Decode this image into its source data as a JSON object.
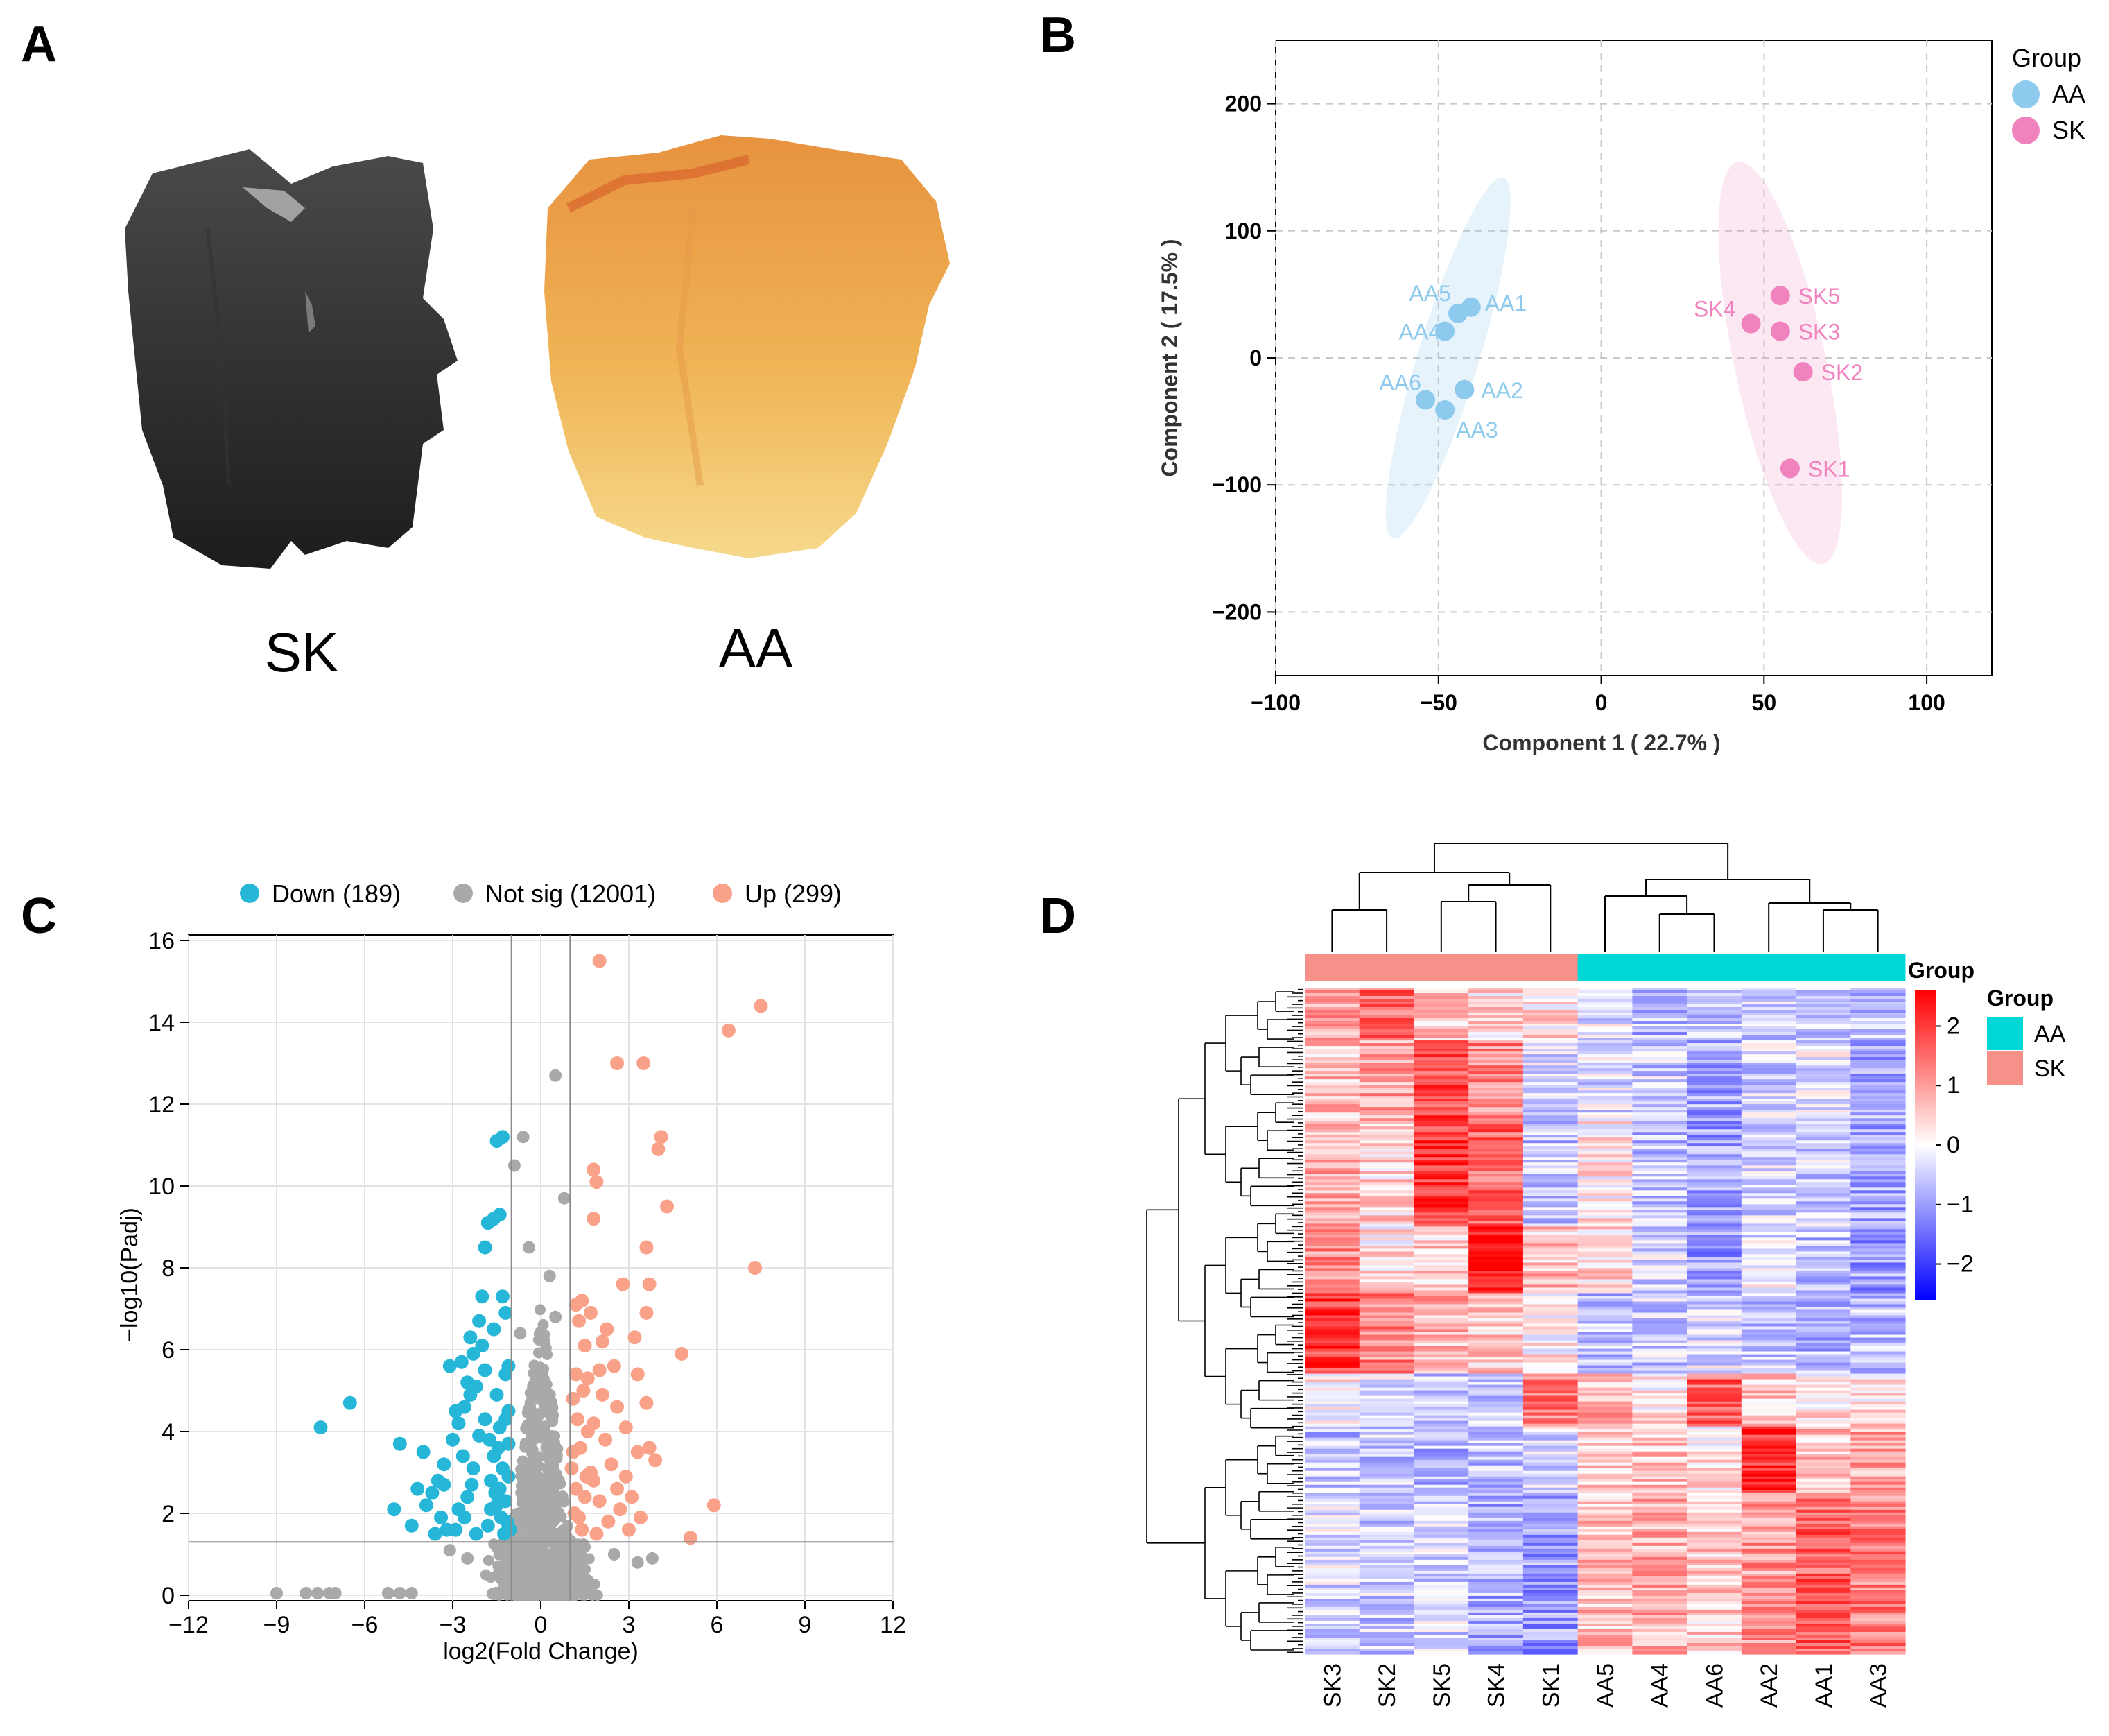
{
  "panels": {
    "a": "A",
    "b": "B",
    "c": "C",
    "d": "D"
  },
  "panel_a": {
    "sample_labels": [
      "SK",
      "AA"
    ]
  },
  "colors": {
    "aa": "#8ec9ee",
    "sk": "#f082bd",
    "down": "#26b6d8",
    "notsig": "#a9a9a9",
    "up": "#f9a189",
    "heat_high": "#ff0000",
    "heat_low": "#0000ff",
    "ann_aa": "#00d8d8",
    "ann_sk": "#f79088"
  },
  "chart_data": [
    {
      "type": "scatter",
      "panel": "B",
      "title": "",
      "xlabel": "Component 1 ( 22.7% )",
      "ylabel": "Component 2 ( 17.5% )",
      "xlim": [
        -100,
        120
      ],
      "ylim": [
        -250,
        250
      ],
      "xticks": [
        -100,
        -50,
        0,
        50,
        100
      ],
      "xtick_labels": [
        "−100",
        "−50",
        "0",
        "50",
        "100"
      ],
      "yticks": [
        -200,
        -100,
        0,
        100,
        200
      ],
      "ytick_labels": [
        "−200",
        "−100",
        "0",
        "100",
        "200"
      ],
      "legend_title": "Group",
      "series": [
        {
          "name": "AA",
          "points": [
            {
              "label": "AA1",
              "x": -40,
              "y": 40
            },
            {
              "label": "AA2",
              "x": -42,
              "y": -25
            },
            {
              "label": "AA3",
              "x": -48,
              "y": -41
            },
            {
              "label": "AA4",
              "x": -48,
              "y": 21
            },
            {
              "label": "AA5",
              "x": -44,
              "y": 35
            },
            {
              "label": "AA6",
              "x": -54,
              "y": -33
            }
          ]
        },
        {
          "name": "SK",
          "points": [
            {
              "label": "SK1",
              "x": 58,
              "y": -87
            },
            {
              "label": "SK2",
              "x": 62,
              "y": -11
            },
            {
              "label": "SK3",
              "x": 55,
              "y": 21
            },
            {
              "label": "SK4",
              "x": 46,
              "y": 27
            },
            {
              "label": "SK5",
              "x": 55,
              "y": 49
            }
          ]
        }
      ]
    },
    {
      "type": "scatter",
      "panel": "C",
      "title": "",
      "xlabel": "log2(Fold Change)",
      "ylabel": "−log10(Padj)",
      "xlim": [
        -12,
        12
      ],
      "ylim": [
        0,
        16
      ],
      "xticks": [
        -12,
        -9,
        -6,
        -3,
        0,
        3,
        6,
        9,
        12
      ],
      "xtick_labels": [
        "−12",
        "−9",
        "−6",
        "−3",
        "0",
        "3",
        "6",
        "9",
        "12"
      ],
      "yticks": [
        0,
        2,
        4,
        6,
        8,
        10,
        12,
        14,
        16
      ],
      "thresholds": {
        "log2fc": [
          -1,
          1
        ],
        "neglog10_padj": 1.3
      },
      "legend": [
        {
          "key": "down",
          "label": "Down (189)"
        },
        {
          "key": "notsig",
          "label": "Not sig (12001)"
        },
        {
          "key": "up",
          "label": "Up (299)"
        }
      ],
      "series": [
        {
          "name": "Down",
          "count": 189,
          "points": [
            [
              -7.5,
              4.1
            ],
            [
              -6.5,
              4.7
            ],
            [
              -5,
              2.1
            ],
            [
              -4.8,
              3.7
            ],
            [
              -4.4,
              1.7
            ],
            [
              -4,
              3.5
            ],
            [
              -3.7,
              2.5
            ],
            [
              -3.5,
              2.8
            ],
            [
              -3.4,
              1.9
            ],
            [
              -3.3,
              2.7
            ],
            [
              -3.2,
              1.6
            ],
            [
              -3,
              3.8
            ],
            [
              -2.8,
              4.2
            ],
            [
              -2.6,
              4.6
            ],
            [
              -2.5,
              5.2
            ],
            [
              -2.4,
              6.3
            ],
            [
              -2.3,
              5.9
            ],
            [
              -2.2,
              5.1
            ],
            [
              -2.1,
              6.7
            ],
            [
              -2,
              7.3
            ],
            [
              -1.9,
              8.5
            ],
            [
              -1.8,
              9.1
            ],
            [
              -1.6,
              9.2
            ],
            [
              -1.5,
              11.1
            ],
            [
              -1.4,
              9.3
            ],
            [
              -1.3,
              11.2
            ],
            [
              -1.3,
              7.3
            ],
            [
              -1.2,
              6.9
            ],
            [
              -1.2,
              5.4
            ],
            [
              -1.1,
              5.6
            ],
            [
              -1.1,
              4.5
            ],
            [
              -2.8,
              2.1
            ],
            [
              -2.5,
              2.4
            ],
            [
              -2.3,
              3.1
            ],
            [
              -2.1,
              3.9
            ],
            [
              -1.9,
              4.3
            ],
            [
              -1.7,
              2.8
            ],
            [
              -1.6,
              3.4
            ],
            [
              -1.5,
              2.2
            ],
            [
              -1.4,
              2.6
            ],
            [
              -1.3,
              3.1
            ],
            [
              -1.2,
              2.3
            ],
            [
              -1.15,
              1.8
            ],
            [
              -1.1,
              3.7
            ],
            [
              -1.1,
              2.9
            ],
            [
              -1.05,
              1.6
            ],
            [
              -3.6,
              1.5
            ],
            [
              -2.9,
              1.6
            ],
            [
              -2.6,
              1.9
            ],
            [
              -2.2,
              1.5
            ],
            [
              -1.8,
              1.7
            ],
            [
              -1.7,
              2.1
            ],
            [
              -1.35,
              1.9
            ],
            [
              -1.25,
              1.5
            ],
            [
              -1.9,
              5.5
            ],
            [
              -2.4,
              4.9
            ],
            [
              -1.6,
              6.5
            ],
            [
              -1.5,
              4.9
            ],
            [
              -1.4,
              4.1
            ],
            [
              -3.1,
              5.6
            ],
            [
              -2.7,
              5.7
            ],
            [
              -2.0,
              6.1
            ],
            [
              -3.9,
              2.2
            ],
            [
              -4.2,
              2.6
            ],
            [
              -3.3,
              3.2
            ],
            [
              -2.9,
              4.5
            ],
            [
              -1.75,
              3.8
            ],
            [
              -1.45,
              3.6
            ],
            [
              -1.2,
              4.3
            ],
            [
              -1.55,
              2.5
            ],
            [
              -2.35,
              2.7
            ],
            [
              -2.65,
              3.4
            ]
          ]
        },
        {
          "name": "Up",
          "count": 299,
          "points": [
            [
              7.5,
              14.4
            ],
            [
              6.4,
              13.8
            ],
            [
              7.3,
              8
            ],
            [
              5.9,
              2.2
            ],
            [
              5.1,
              1.4
            ],
            [
              4.8,
              5.9
            ],
            [
              4.3,
              9.5
            ],
            [
              4.1,
              11.2
            ],
            [
              4,
              10.9
            ],
            [
              3.7,
              7.6
            ],
            [
              3.6,
              8.5
            ],
            [
              3.6,
              4.7
            ],
            [
              3.5,
              13
            ],
            [
              2.6,
              13
            ],
            [
              2,
              15.5
            ],
            [
              2.1,
              6.2
            ],
            [
              1.9,
              10.1
            ],
            [
              1.8,
              10.4
            ],
            [
              1.8,
              9.2
            ],
            [
              2.8,
              7.6
            ],
            [
              1.4,
              7.2
            ],
            [
              1.2,
              7.1
            ],
            [
              3.6,
              6.9
            ],
            [
              3.2,
              6.3
            ],
            [
              3.3,
              5.4
            ],
            [
              3.7,
              3.6
            ],
            [
              3.9,
              3.3
            ],
            [
              2.6,
              4.6
            ],
            [
              2.5,
              5.6
            ],
            [
              2.9,
              2.9
            ],
            [
              2.2,
              3.8
            ],
            [
              1.8,
              4.2
            ],
            [
              1.6,
              5.3
            ],
            [
              1.5,
              6.1
            ],
            [
              1.3,
              6.7
            ],
            [
              1.2,
              5.4
            ],
            [
              1.1,
              4.8
            ],
            [
              1.1,
              3.5
            ],
            [
              1.2,
              2.6
            ],
            [
              1.3,
              1.9
            ],
            [
              1.5,
              2.4
            ],
            [
              1.7,
              3.0
            ],
            [
              2.0,
              2.3
            ],
            [
              2.3,
              1.8
            ],
            [
              2.7,
              2.1
            ],
            [
              3.0,
              1.6
            ],
            [
              1.9,
              1.5
            ],
            [
              1.4,
              1.6
            ],
            [
              1.15,
              2.0
            ],
            [
              1.6,
              4.0
            ],
            [
              2.1,
              4.9
            ],
            [
              2.4,
              3.2
            ],
            [
              1.8,
              2.8
            ],
            [
              2.9,
              4.1
            ],
            [
              3.3,
              3.5
            ],
            [
              1.35,
              3.6
            ],
            [
              1.05,
              3.1
            ],
            [
              1.25,
              4.3
            ],
            [
              1.55,
              2.9
            ],
            [
              2.25,
              6.5
            ],
            [
              1.7,
              6.9
            ],
            [
              2.6,
              2.6
            ],
            [
              3.1,
              2.4
            ],
            [
              3.4,
              1.9
            ],
            [
              2.0,
              5.5
            ],
            [
              1.45,
              5.0
            ]
          ]
        },
        {
          "name": "Not sig",
          "count": 12001
        }
      ]
    },
    {
      "type": "heatmap",
      "panel": "D",
      "columns": [
        "SK3",
        "SK2",
        "SK5",
        "SK4",
        "SK1",
        "AA5",
        "AA4",
        "AA6",
        "AA2",
        "AA1",
        "AA3"
      ],
      "column_groups": [
        "SK",
        "SK",
        "SK",
        "SK",
        "SK",
        "AA",
        "AA",
        "AA",
        "AA",
        "AA",
        "AA"
      ],
      "annotation_title": "Group",
      "legend_title": "Group",
      "legend_items": [
        "AA",
        "SK"
      ],
      "colorbar_ticks": [
        2,
        1,
        0,
        -1,
        -2
      ],
      "colorbar_labels": [
        "2",
        "1",
        "0",
        "−1",
        "−2"
      ],
      "colorbar_range": [
        -2.6,
        2.6
      ],
      "row_blocks": [
        {
          "name": "rows 1-40",
          "fraction": 0.08,
          "means": [
            1.0,
            1.5,
            0.6,
            0.4,
            0.3,
            -0.3,
            -0.7,
            -0.6,
            -0.5,
            -0.4,
            -0.6
          ]
        },
        {
          "name": "rows 41-100",
          "fraction": 0.12,
          "means": [
            0.6,
            0.9,
            1.8,
            1.2,
            -0.4,
            -0.3,
            -0.5,
            -0.9,
            -0.4,
            -0.3,
            -0.8
          ]
        },
        {
          "name": "rows 101-180",
          "fraction": 0.16,
          "means": [
            0.8,
            0.4,
            2.0,
            1.6,
            -0.6,
            0.2,
            -0.6,
            -1.0,
            -0.3,
            -0.5,
            -0.9
          ]
        },
        {
          "name": "rows 181-230",
          "fraction": 0.1,
          "means": [
            1.2,
            0.3,
            0.5,
            2.4,
            0.6,
            0.4,
            -0.4,
            -1.0,
            -0.2,
            -0.6,
            -1.0
          ]
        },
        {
          "name": "rows 231-290",
          "fraction": 0.12,
          "means": [
            2.0,
            1.2,
            0.8,
            0.5,
            0.2,
            -0.6,
            -0.5,
            -0.3,
            -0.5,
            -0.7,
            -0.6
          ]
        },
        {
          "name": "rows 291-330",
          "fraction": 0.08,
          "means": [
            0.2,
            -0.4,
            -0.6,
            -0.5,
            1.3,
            0.8,
            0.3,
            1.6,
            0.5,
            0.2,
            0.4
          ]
        },
        {
          "name": "rows 331-380",
          "fraction": 0.1,
          "means": [
            -0.6,
            -0.5,
            -0.7,
            -0.6,
            -0.3,
            0.4,
            0.6,
            0.2,
            2.2,
            0.6,
            0.9
          ]
        },
        {
          "name": "rows 381-500",
          "fraction": 0.24,
          "means": [
            -0.4,
            -0.5,
            -0.4,
            -0.8,
            -1.0,
            0.6,
            0.8,
            0.5,
            1.0,
            1.6,
            1.3
          ]
        }
      ]
    }
  ]
}
